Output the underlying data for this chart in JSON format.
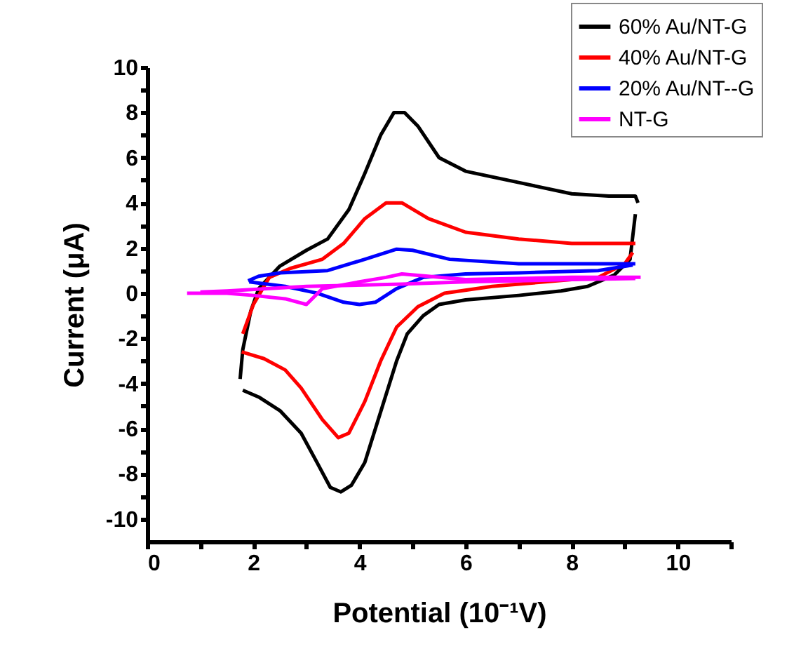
{
  "chart_data": {
    "type": "line",
    "xlabel": "Potential (10⁻¹V)",
    "ylabel": "Current (μA)",
    "xlim": [
      0,
      11
    ],
    "ylim": [
      -11,
      10
    ],
    "xticks": [
      0,
      {
        "value": 1,
        "label": null
      },
      2,
      {
        "value": 3,
        "label": null
      },
      4,
      {
        "value": 5,
        "label": null
      },
      6,
      {
        "value": 7,
        "label": null
      },
      8,
      {
        "value": 9,
        "label": null
      },
      10,
      {
        "value": 11,
        "label": null
      }
    ],
    "yticks": [
      -10,
      {
        "value": -9,
        "label": null
      },
      -8,
      {
        "value": -7,
        "label": null
      },
      -6,
      {
        "value": -5,
        "label": null
      },
      -4,
      {
        "value": -3,
        "label": null
      },
      -2,
      {
        "value": -1,
        "label": null
      },
      0,
      {
        "value": 1,
        "label": null
      },
      2,
      {
        "value": 3,
        "label": null
      },
      4,
      {
        "value": 5,
        "label": null
      },
      6,
      {
        "value": 7,
        "label": null
      },
      8,
      {
        "value": 9,
        "label": null
      },
      10
    ],
    "grid": false,
    "legend": "top right",
    "marker": "none",
    "line_style": "solid",
    "series": [
      {
        "name": "60% Au/NT-G",
        "color": "#000000",
        "x": [
          1.75,
          1.8,
          1.95,
          2.1,
          2.5,
          3,
          3.4,
          3.8,
          4.1,
          4.4,
          4.65,
          4.85,
          5.1,
          5.5,
          6,
          7,
          8,
          8.7,
          9.2,
          9.25
        ],
        "values": [
          -3.8,
          -2.5,
          -0.8,
          0.2,
          1.2,
          1.9,
          2.4,
          3.7,
          5.3,
          7,
          8,
          8,
          7.4,
          6,
          5.4,
          4.9,
          4.4,
          4.3,
          4.3,
          4.0
        ]
      },
      {
        "color": "#000000",
        "x": [
          1.8,
          2.1,
          2.5,
          2.9,
          3.2,
          3.45,
          3.65,
          3.85,
          4.1,
          4.3,
          4.5,
          4.7,
          4.9,
          5.2,
          5.5,
          6,
          7,
          7.8,
          8.3,
          8.8,
          9.1,
          9.2
        ],
        "values": [
          -4.3,
          -4.6,
          -5.2,
          -6.2,
          -7.5,
          -8.6,
          -8.8,
          -8.5,
          -7.5,
          -6,
          -4.5,
          -3,
          -1.8,
          -1,
          -0.5,
          -0.3,
          -0.1,
          0.1,
          0.3,
          0.8,
          1.5,
          3.5
        ]
      },
      {
        "name": "40% Au/NT-G",
        "color": "#ff0000",
        "x": [
          1.8,
          2,
          2.3,
          2.7,
          3.3,
          3.7,
          4.1,
          4.5,
          4.8,
          5.3,
          6,
          7,
          8,
          9.2
        ],
        "values": [
          -1.8,
          -0.5,
          0.7,
          1.1,
          1.5,
          2.2,
          3.3,
          4,
          4,
          3.3,
          2.7,
          2.4,
          2.2,
          2.2
        ]
      },
      {
        "color": "#ff0000",
        "x": [
          1.78,
          2.2,
          2.6,
          2.9,
          3.3,
          3.6,
          3.8,
          4.1,
          4.4,
          4.7,
          5.1,
          5.6,
          6.5,
          7.5,
          8.5,
          9,
          9.15
        ],
        "values": [
          -2.6,
          -2.9,
          -3.4,
          -4.2,
          -5.6,
          -6.4,
          -6.2,
          -4.8,
          -3,
          -1.5,
          -0.6,
          0,
          0.3,
          0.5,
          0.7,
          1.3,
          1.8
        ]
      },
      {
        "name": "20% Au/NT--G",
        "color": "#0000ff",
        "x": [
          1.9,
          2.1,
          2.5,
          3.4,
          4.1,
          4.7,
          5,
          5.7,
          7,
          8.5,
          9.2
        ],
        "values": [
          0.55,
          0.75,
          0.9,
          1,
          1.5,
          1.95,
          1.9,
          1.5,
          1.3,
          1.3,
          1.3
        ]
      },
      {
        "color": "#0000ff",
        "x": [
          1.92,
          2.1,
          2.6,
          3.2,
          3.7,
          4,
          4.3,
          4.7,
          5.2,
          6,
          7,
          8.5,
          9.15
        ],
        "values": [
          0.5,
          0.45,
          0.3,
          0,
          -0.4,
          -0.5,
          -0.4,
          0.2,
          0.7,
          0.85,
          0.9,
          1.0,
          1.25
        ]
      },
      {
        "name": "NT-G",
        "color": "#ff00ff",
        "x": [
          0.75,
          1.5,
          2,
          2.6,
          3,
          3.3,
          4,
          4.5,
          4.8,
          6,
          8,
          9.3
        ],
        "values": [
          0,
          0,
          -0.1,
          -0.25,
          -0.5,
          0.2,
          0.5,
          0.7,
          0.85,
          0.6,
          0.7,
          0.7
        ]
      },
      {
        "color": "#ff00ff",
        "x": [
          1,
          1.5,
          3,
          4.8,
          6,
          8,
          9.2
        ],
        "values": [
          0.05,
          0.1,
          0.3,
          0.4,
          0.5,
          0.6,
          0.65
        ]
      }
    ]
  }
}
